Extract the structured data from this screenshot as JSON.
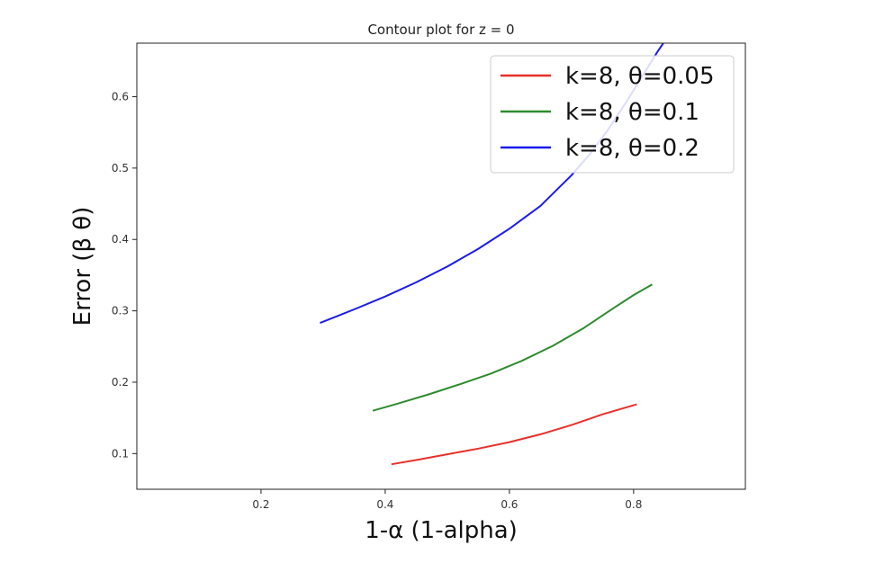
{
  "chart_data": {
    "type": "line",
    "title": "Contour plot for z = 0",
    "xlabel": "1-α (1-alpha)",
    "ylabel": "Error (β θ)",
    "xlim": [
      0.0,
      0.98
    ],
    "ylim": [
      0.05,
      0.675
    ],
    "x_ticks": [
      "0.2",
      "0.4",
      "0.6",
      "0.8"
    ],
    "y_ticks": [
      "0.1",
      "0.2",
      "0.3",
      "0.4",
      "0.5",
      "0.6"
    ],
    "grid": false,
    "legend_position": "top-right",
    "series": [
      {
        "name": "k=8, θ=0.05",
        "color": "#e8302a",
        "x": [
          0.41,
          0.45,
          0.5,
          0.55,
          0.6,
          0.65,
          0.7,
          0.75,
          0.805
        ],
        "y": [
          0.085,
          0.091,
          0.099,
          0.107,
          0.116,
          0.127,
          0.14,
          0.155,
          0.169
        ]
      },
      {
        "name": "k=8, θ=0.1",
        "color": "#2e8b2e",
        "x": [
          0.38,
          0.42,
          0.47,
          0.52,
          0.57,
          0.62,
          0.67,
          0.72,
          0.77,
          0.8,
          0.83
        ],
        "y": [
          0.16,
          0.17,
          0.183,
          0.197,
          0.212,
          0.23,
          0.251,
          0.276,
          0.305,
          0.322,
          0.337
        ]
      },
      {
        "name": "k=8, θ=0.2",
        "color": "#1a1aee",
        "x": [
          0.295,
          0.35,
          0.4,
          0.45,
          0.5,
          0.55,
          0.6,
          0.65,
          0.7,
          0.73,
          0.76,
          0.79,
          0.82,
          0.84,
          0.86
        ],
        "y": [
          0.283,
          0.302,
          0.32,
          0.34,
          0.362,
          0.387,
          0.415,
          0.447,
          0.49,
          0.52,
          0.555,
          0.595,
          0.637,
          0.665,
          0.69
        ]
      }
    ]
  }
}
